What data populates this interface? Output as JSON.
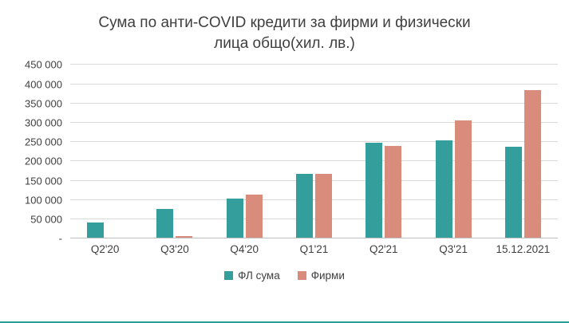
{
  "chart_data": {
    "type": "bar",
    "title": "Сума по анти-COVID кредити за фирми и физически лица общо(хил. лв.)",
    "categories": [
      "Q2'20",
      "Q3'20",
      "Q4'20",
      "Q1'21",
      "Q2'21",
      "Q3'21",
      "15.12.2021"
    ],
    "series": [
      {
        "name": "ФЛ сума",
        "color": "#339E9B",
        "values": [
          42000,
          78000,
          104000,
          168000,
          248000,
          255000,
          237000
        ]
      },
      {
        "name": "Фирми",
        "color": "#D98C7C",
        "values": [
          2000,
          7000,
          115000,
          167000,
          240000,
          306000,
          385000
        ]
      }
    ],
    "ylim": [
      0,
      450000
    ],
    "ytick_step": 50000,
    "ytick_labels": [
      "-",
      "50 000",
      "100 000",
      "150 000",
      "200 000",
      "250 000",
      "300 000",
      "350 000",
      "400 000",
      "450 000"
    ],
    "grid": true,
    "legend_position": "bottom"
  },
  "colors": {
    "accent_line": "#2E9D9A",
    "grid": "#D9D9D9",
    "text": "#404040"
  }
}
